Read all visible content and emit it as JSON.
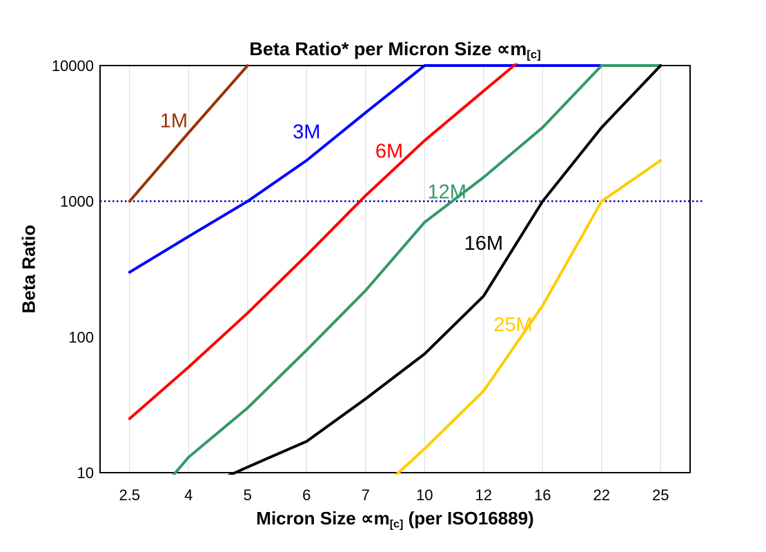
{
  "chart_data": {
    "type": "line",
    "title_main": "Beta Ratio* per Micron Size ∝m",
    "title_sub": "[c]",
    "ylabel": "Beta Ratio",
    "xlabel_pre": "Micron Size ∝m",
    "xlabel_sub": "[c]",
    "xlabel_post": " (per ISO16889)",
    "x_categories": [
      "2.5",
      "4",
      "5",
      "6",
      "7",
      "10",
      "12",
      "16",
      "22",
      "25"
    ],
    "y_ticks": [
      10,
      100,
      1000,
      10000
    ],
    "y_scale": "log",
    "ylim": [
      10,
      10000
    ],
    "grid": "vertical-only",
    "legend": "inline-labels",
    "reference_line": {
      "value": 1000,
      "color": "#0000CC",
      "style": "dotted"
    },
    "series": [
      {
        "name": "1M",
        "color": "#993300",
        "values": [
          1000,
          3200,
          10000,
          null,
          null,
          null,
          null,
          null,
          null,
          null
        ],
        "label": {
          "xi": 0.75,
          "y": 3500
        }
      },
      {
        "name": "3M",
        "color": "#0000FF",
        "values": [
          300,
          550,
          1000,
          2000,
          4500,
          10000,
          10000,
          10000,
          10000,
          null
        ],
        "label": {
          "xi": 3.0,
          "y": 2900
        }
      },
      {
        "name": "6M",
        "color": "#FF0000",
        "values": [
          25,
          60,
          150,
          400,
          1100,
          2800,
          6500,
          15000,
          null,
          null
        ],
        "label": {
          "xi": 4.4,
          "y": 2100
        }
      },
      {
        "name": "12M",
        "color": "#339966",
        "values": [
          4,
          13,
          30,
          80,
          220,
          700,
          1500,
          3500,
          10000,
          10000
        ],
        "label": {
          "xi": 5.38,
          "y": 1050
        }
      },
      {
        "name": "16M",
        "color": "#000000",
        "values": [
          null,
          7,
          11,
          17,
          35,
          75,
          200,
          1000,
          3500,
          10000
        ],
        "label": {
          "xi": 6.0,
          "y": 440
        }
      },
      {
        "name": "25M",
        "color": "#FFCC00",
        "values": [
          null,
          null,
          null,
          null,
          6,
          15,
          40,
          170,
          1000,
          2000
        ],
        "label": {
          "xi": 6.5,
          "y": 110
        }
      }
    ]
  }
}
